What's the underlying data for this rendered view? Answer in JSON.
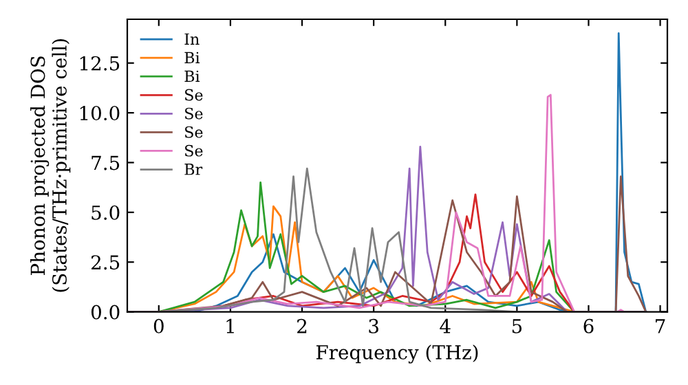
{
  "chart_data": {
    "type": "line",
    "xlabel": "Frequency (THz)",
    "ylabel": "Phonon projected DOS\n(States/THz·primitive cell)",
    "xlim": [
      -0.44,
      7.1
    ],
    "ylim": [
      0,
      14.7
    ],
    "xticks": [
      0,
      1,
      2,
      3,
      4,
      5,
      6,
      7
    ],
    "yticks": [
      {
        "value": 0,
        "label": "0.0"
      },
      {
        "value": 2.5,
        "label": "2.5"
      },
      {
        "value": 5,
        "label": "5.0"
      },
      {
        "value": 7.5,
        "label": "7.5"
      },
      {
        "value": 10,
        "label": "10.0"
      },
      {
        "value": 12.5,
        "label": "12.5"
      }
    ],
    "legend": "top left",
    "grid": false,
    "marker": "none",
    "line_style": "solid",
    "series": [
      {
        "name": "In",
        "color": "#1f77b4",
        "x": [
          -0.4,
          0.5,
          0.8,
          1.1,
          1.3,
          1.45,
          1.6,
          1.75,
          2.0,
          2.3,
          2.6,
          2.8,
          3.0,
          3.3,
          3.6,
          4.0,
          4.3,
          4.6,
          5.0,
          5.3,
          5.6,
          5.8,
          6.38,
          6.42,
          6.5,
          6.6,
          6.7,
          6.8
        ],
        "values": [
          0,
          0,
          0.3,
          0.8,
          2.0,
          2.5,
          3.9,
          2.0,
          1.5,
          1.0,
          2.2,
          1.0,
          2.6,
          0.5,
          0.3,
          1.0,
          1.3,
          0.5,
          0.3,
          0.5,
          0.1,
          0,
          0,
          14.0,
          3,
          1.5,
          1.4,
          0
        ]
      },
      {
        "name": "Bi",
        "color": "#ff7f0e",
        "x": [
          -0.4,
          0,
          0.5,
          0.8,
          1.05,
          1.2,
          1.3,
          1.45,
          1.55,
          1.6,
          1.7,
          1.8,
          1.9,
          2.0,
          2.3,
          2.5,
          2.7,
          3.0,
          3.3,
          3.7,
          4.1,
          4.4,
          5.0,
          5.2,
          5.3,
          5.5,
          5.8,
          6.8
        ],
        "values": [
          0,
          0,
          0.4,
          1.0,
          2.0,
          4.4,
          3.3,
          3.8,
          2.5,
          5.3,
          4.8,
          2.0,
          4.5,
          1.5,
          1.0,
          1.8,
          0.7,
          1.2,
          0.5,
          0.3,
          0.8,
          0.4,
          0.5,
          1.5,
          0.5,
          0.3,
          0,
          0
        ]
      },
      {
        "name": "Bi",
        "color": "#2ca02c",
        "x": [
          -0.4,
          0,
          0.5,
          0.9,
          1.05,
          1.15,
          1.3,
          1.38,
          1.42,
          1.55,
          1.7,
          1.85,
          2.0,
          2.3,
          2.6,
          2.9,
          3.1,
          3.5,
          4.0,
          4.3,
          4.7,
          5.0,
          5.2,
          5.45,
          5.55,
          5.8,
          6.8
        ],
        "values": [
          0,
          0,
          0.5,
          1.5,
          3.0,
          5.1,
          3.3,
          3.8,
          6.5,
          2.2,
          3.9,
          1.4,
          1.8,
          1.0,
          1.3,
          0.7,
          1.0,
          0.3,
          0.4,
          0.6,
          0.2,
          0.5,
          0.8,
          3.6,
          1.0,
          0,
          0
        ]
      },
      {
        "name": "Se",
        "color": "#d62728",
        "x": [
          -0.4,
          0,
          0.8,
          1.2,
          1.6,
          2.0,
          2.5,
          3.0,
          3.4,
          3.8,
          4.0,
          4.2,
          4.3,
          4.35,
          4.42,
          4.55,
          4.8,
          5.0,
          5.2,
          5.45,
          5.6,
          5.8,
          6.8
        ],
        "values": [
          0,
          0,
          0.2,
          0.6,
          0.8,
          0.3,
          0.5,
          0.3,
          0.8,
          0.5,
          1.0,
          2.5,
          4.8,
          4.2,
          5.9,
          2.5,
          1.0,
          2.0,
          0.8,
          2.3,
          1.0,
          0,
          0
        ]
      },
      {
        "name": "Se",
        "color": "#9467bd",
        "x": [
          -0.4,
          0,
          1.0,
          1.4,
          1.8,
          2.3,
          2.8,
          3.2,
          3.4,
          3.5,
          3.55,
          3.65,
          3.75,
          3.9,
          4.1,
          4.4,
          4.6,
          4.8,
          4.9,
          5.0,
          5.2,
          5.45,
          5.7,
          6.8
        ],
        "values": [
          0,
          0,
          0.2,
          0.6,
          0.3,
          0.2,
          0.3,
          1.0,
          2.2,
          7.2,
          1.3,
          8.3,
          3.0,
          0.6,
          1.5,
          0.9,
          1.2,
          4.5,
          1.8,
          4.4,
          0.5,
          0.9,
          0,
          0
        ]
      },
      {
        "name": "Se",
        "color": "#8c564b",
        "x": [
          -0.4,
          0,
          0.9,
          1.3,
          1.45,
          1.6,
          2.0,
          2.5,
          2.9,
          3.1,
          3.3,
          3.8,
          3.95,
          4.1,
          4.3,
          4.5,
          4.7,
          4.9,
          5.0,
          5.2,
          5.5,
          5.7,
          6.38,
          6.45,
          6.55,
          6.7,
          6.8
        ],
        "values": [
          0,
          0,
          0.3,
          0.7,
          1.5,
          0.6,
          1.0,
          0.3,
          1.2,
          0.3,
          2.0,
          0.4,
          3.0,
          5.6,
          3.0,
          2.0,
          0.8,
          1.5,
          5.8,
          1.0,
          0.5,
          0,
          0,
          6.8,
          1.8,
          0.8,
          0
        ]
      },
      {
        "name": "Se",
        "color": "#e377c2",
        "x": [
          -0.4,
          0,
          1.0,
          1.4,
          1.8,
          2.2,
          2.8,
          3.2,
          3.7,
          4.0,
          4.15,
          4.3,
          4.45,
          4.6,
          4.9,
          5.05,
          5.2,
          5.35,
          5.43,
          5.47,
          5.55,
          5.8,
          6.4,
          6.45,
          6.5,
          6.8
        ],
        "values": [
          0,
          0,
          0.3,
          0.7,
          0.4,
          0.5,
          0.2,
          0.5,
          0.3,
          0.5,
          5.0,
          3.5,
          3.2,
          0.8,
          0.8,
          3.3,
          0.5,
          0.6,
          10.8,
          10.9,
          2.0,
          0,
          0,
          0.1,
          0,
          0
        ]
      },
      {
        "name": "Br",
        "color": "#7f7f7f",
        "x": [
          -0.4,
          0,
          0.8,
          1.3,
          1.6,
          1.75,
          1.88,
          1.95,
          2.07,
          2.2,
          2.4,
          2.6,
          2.73,
          2.85,
          2.98,
          3.1,
          3.2,
          3.35,
          3.5,
          3.8,
          4.5,
          5.0,
          6.8
        ],
        "values": [
          0,
          0,
          0.2,
          0.5,
          0.6,
          1.0,
          6.8,
          3.5,
          7.2,
          4.0,
          2.0,
          0.5,
          3.2,
          0.3,
          4.2,
          1.5,
          3.5,
          4.0,
          0.5,
          0.2,
          0.1,
          0,
          0
        ]
      }
    ]
  }
}
